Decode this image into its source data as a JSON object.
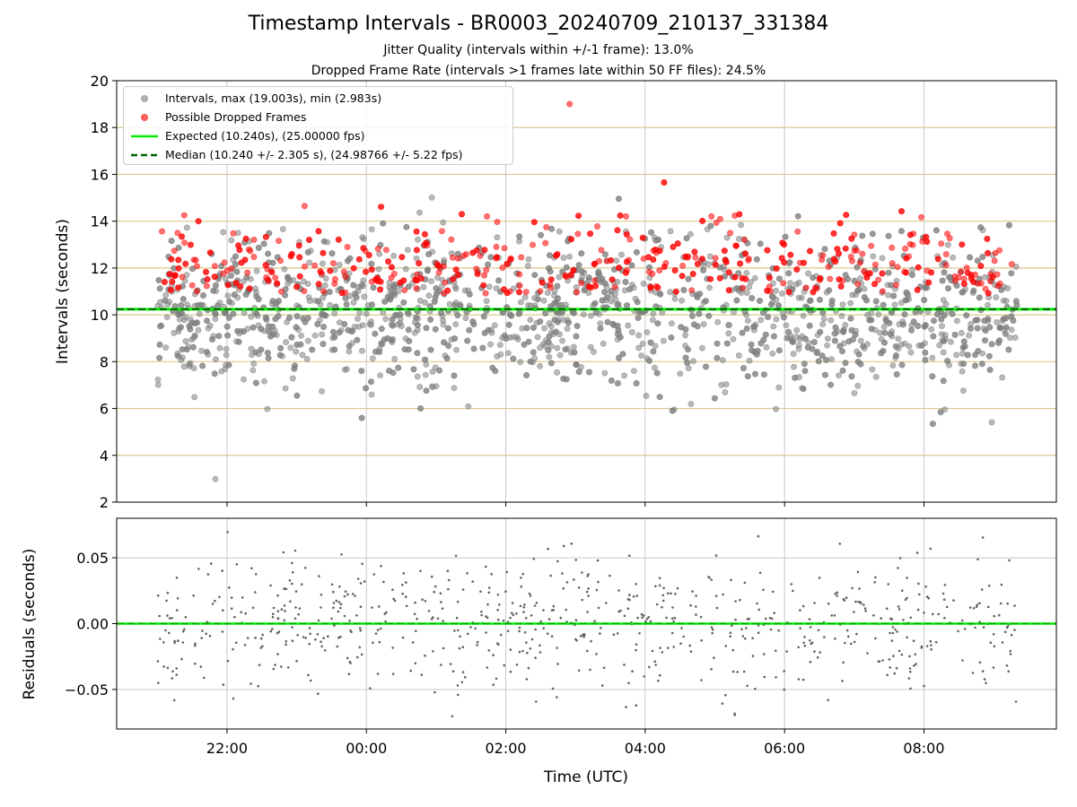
{
  "title": "Timestamp Intervals - BR0003_20240709_210137_331384",
  "subtitle1": "Jitter Quality (intervals within +/-1 frame): 13.0%",
  "subtitle2": "Dropped Frame Rate (intervals >1 frames late within 50 FF files): 24.5%",
  "colors": {
    "intervals": "#808080",
    "dropped": "#ff0000",
    "expected": "#00ee00",
    "median": "#006400",
    "gridline_y_top": "#d9c88f",
    "grid": "#c8c8c8"
  },
  "chart_data": [
    {
      "type": "scatter",
      "panel": "intervals",
      "ylabel": "Intervals (seconds)",
      "ylim": [
        2,
        20
      ],
      "yticks": [
        "2",
        "4",
        "6",
        "8",
        "10",
        "12",
        "14",
        "16",
        "18",
        "20"
      ],
      "x_range_utc": [
        "20:25",
        "09:54"
      ],
      "series": [
        {
          "name": "Intervals, max (19.003s), min (2.983s)",
          "color": "#808080",
          "max": 19.003,
          "min": 2.983
        },
        {
          "name": "Possible Dropped Frames",
          "color": "#ff0000"
        }
      ],
      "lines": [
        {
          "name": "Expected (10.240s), (25.00000 fps)",
          "y": 10.24,
          "style": "solid",
          "color": "#00ee00"
        },
        {
          "name": "Median (10.240 +/- 2.305 s), (24.98766 +/- 5.22 fps)",
          "y": 10.24,
          "style": "dashed",
          "color": "#006400"
        }
      ],
      "data_time_range_utc": [
        "21:00",
        "09:20"
      ],
      "legend_position": "upper-left",
      "grid": true
    },
    {
      "type": "scatter",
      "panel": "residuals",
      "ylabel": "Residuals (seconds)",
      "xlabel": "Time (UTC)",
      "ylim": [
        -0.08,
        0.08
      ],
      "yticks": [
        "−0.05",
        "0.00",
        "0.05"
      ],
      "ytick_values": [
        -0.05,
        0.0,
        0.05
      ],
      "xticks": [
        "22:00",
        "00:00",
        "02:00",
        "04:00",
        "06:00",
        "08:00"
      ],
      "zero_line_color": "#00aa00",
      "grid": true
    }
  ]
}
